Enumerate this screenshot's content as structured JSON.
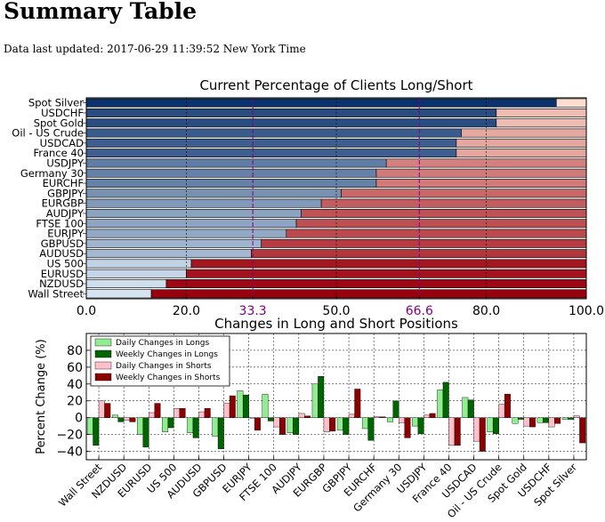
{
  "page": {
    "title": "Summary Table",
    "updated_label": "Data last updated: 2017-06-29 11:39:52 New York Time"
  },
  "colors": {
    "long_dark": "#08306b",
    "long_light": "#deebf7",
    "short_light": "#fee0d2",
    "short_dark": "#99000d",
    "daily_long": "#90ee90",
    "weekly_long": "#006400",
    "daily_short": "#ffc0cb",
    "weekly_short": "#8b0000",
    "guide": "#800080"
  },
  "chart_data": [
    {
      "type": "bar",
      "orientation": "horizontal-stacked",
      "title": "Current Percentage of Clients Long/Short",
      "categories": [
        "Spot Silver",
        "USDCHF",
        "Spot Gold",
        "Oil - US Crude",
        "USDCAD",
        "France 40",
        "USDJPY",
        "Germany 30",
        "EURCHF",
        "GBPJPY",
        "EURGBP",
        "AUDJPY",
        "FTSE 100",
        "EURJPY",
        "GBPUSD",
        "AUDUSD",
        "US 500",
        "EURUSD",
        "NZDUSD",
        "Wall Street"
      ],
      "series": [
        {
          "name": "Long",
          "values": [
            94,
            82,
            82,
            75,
            74,
            74,
            60,
            58,
            58,
            51,
            47,
            43,
            42,
            40,
            35,
            33,
            21,
            20,
            16,
            13
          ]
        },
        {
          "name": "Short",
          "values": [
            6,
            18,
            18,
            25,
            26,
            26,
            40,
            42,
            42,
            49,
            53,
            57,
            58,
            60,
            65,
            67,
            79,
            80,
            84,
            87
          ]
        }
      ],
      "xlim": [
        0,
        100
      ],
      "xticks": [
        "0.0",
        "20.0",
        "33.3",
        "50.0",
        "66.6",
        "80.0",
        "100.0"
      ],
      "reference_lines": [
        33.3,
        66.6
      ],
      "grid": true
    },
    {
      "type": "bar",
      "title": "Changes in Long and Short Positions",
      "ylabel": "Percent Change (%)",
      "ylim": [
        -50,
        100
      ],
      "yticks": [
        "−40",
        "−20",
        "0",
        "20",
        "40",
        "60",
        "80"
      ],
      "categories": [
        "Wall Street",
        "NZDUSD",
        "EURUSD",
        "US 500",
        "AUDUSD",
        "GBPUSD",
        "EURJPY",
        "FTSE 100",
        "AUDJPY",
        "EURGBP",
        "GBPJPY",
        "EURCHF",
        "Germany 30",
        "USDJPY",
        "France 40",
        "USDCAD",
        "Oil - US Crude",
        "Spot Gold",
        "USDCHF",
        "Spot Silver"
      ],
      "series": [
        {
          "name": "Daily Changes in Longs",
          "values": [
            -20,
            3,
            -20,
            -17,
            -18,
            -22,
            32,
            28,
            -18,
            40,
            -15,
            -13,
            -5,
            -10,
            33,
            24,
            -17,
            -7,
            -6,
            -2
          ]
        },
        {
          "name": "Weekly Changes in Longs",
          "values": [
            -33,
            -5,
            -35,
            -12,
            -24,
            -37,
            27,
            -4,
            -20,
            49,
            -20,
            -27,
            20,
            -19,
            42,
            21,
            -19,
            -2,
            -6,
            -2
          ]
        },
        {
          "name": "Daily Changes in Shorts",
          "values": [
            20,
            -3,
            6,
            11,
            7,
            17,
            0,
            -11,
            5,
            -17,
            4,
            1,
            -6,
            3,
            -33,
            -28,
            16,
            -10,
            -11,
            2
          ]
        },
        {
          "name": "Weekly Changes in Shorts",
          "values": [
            17,
            -5,
            17,
            11,
            11,
            26,
            -15,
            -20,
            2,
            -16,
            34,
            1,
            -24,
            5,
            -33,
            -40,
            28,
            -11,
            -7,
            -30
          ]
        }
      ],
      "legend": "top-left",
      "grid": true
    }
  ]
}
